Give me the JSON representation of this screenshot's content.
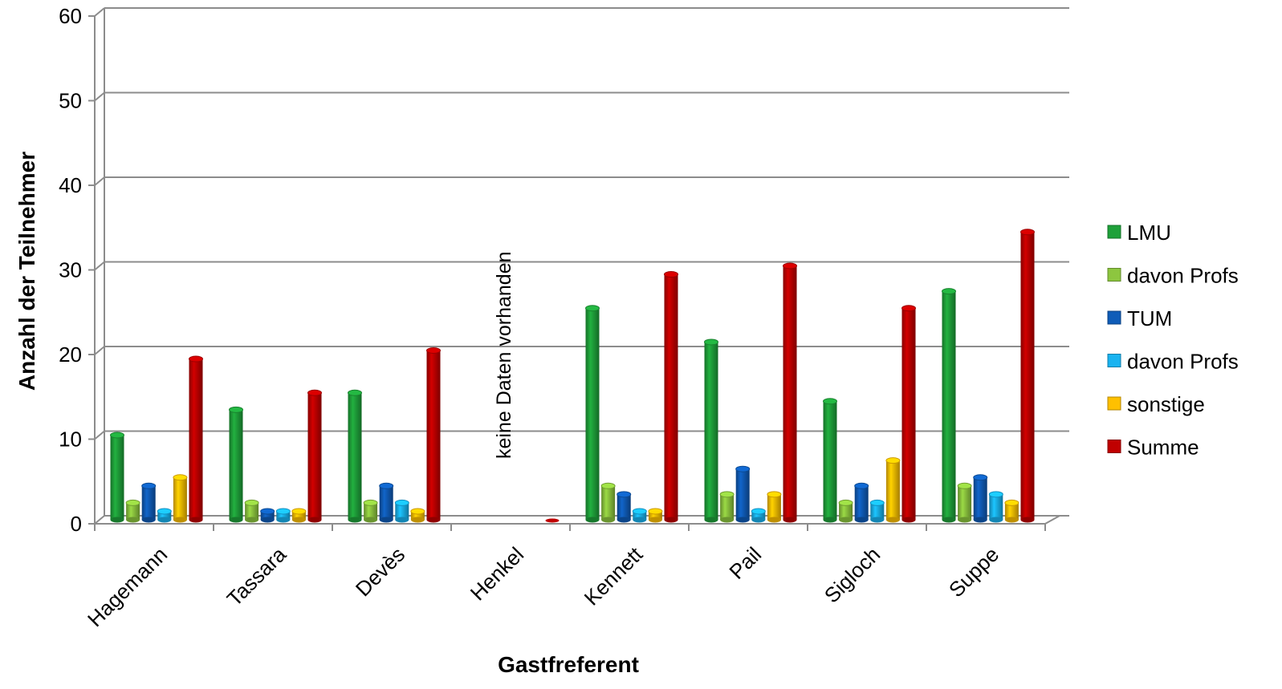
{
  "chart_data": {
    "type": "bar",
    "xlabel": "Gastfreferent",
    "ylabel": "Anzahl der Teilnehmer",
    "ylim": [
      0,
      60
    ],
    "yticks": [
      0,
      10,
      20,
      30,
      40,
      50,
      60
    ],
    "grid": true,
    "legend_position": "right",
    "categories": [
      "Hagemann",
      "Tassara",
      "Devès",
      "Henkel",
      "Kennett",
      "Pail",
      "Sigloch",
      "Suppe"
    ],
    "series": [
      {
        "name": "LMU",
        "color": "#1fa13a",
        "values": [
          10,
          13,
          15,
          0,
          25,
          21,
          14,
          27
        ]
      },
      {
        "name": "davon Profs",
        "color": "#8dc63f",
        "values": [
          2,
          2,
          2,
          0,
          4,
          3,
          2,
          4
        ]
      },
      {
        "name": "TUM",
        "color": "#0f5cb8",
        "values": [
          4,
          1,
          4,
          0,
          3,
          6,
          4,
          5
        ]
      },
      {
        "name": "davon Profs",
        "color": "#19b3f0",
        "values": [
          1,
          1,
          2,
          0,
          1,
          1,
          2,
          3
        ]
      },
      {
        "name": "sonstige",
        "color": "#ffc000",
        "values": [
          5,
          1,
          1,
          0,
          1,
          3,
          7,
          2
        ]
      },
      {
        "name": "Summe",
        "color": "#c00000",
        "values": [
          19,
          15,
          20,
          0,
          29,
          30,
          25,
          34
        ]
      }
    ],
    "annotations": [
      {
        "text": "keine Daten vorhanden",
        "category": "Henkel",
        "orientation": "vertical"
      }
    ]
  }
}
